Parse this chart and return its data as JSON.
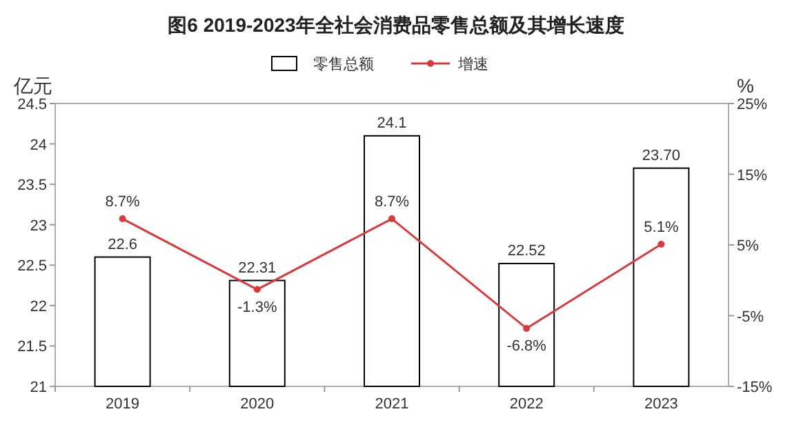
{
  "chart_data": {
    "type": "bar",
    "title": "图6 2019-2023年全社会消费品零售总额及其增长速度",
    "ylabel": "亿元",
    "y2label": "%",
    "categories": [
      "2019",
      "2020",
      "2021",
      "2022",
      "2023"
    ],
    "series": [
      {
        "name": "零售总额",
        "color": "#ffffff",
        "values": [
          22.6,
          22.31,
          24.1,
          22.52,
          23.7
        ],
        "value_labels": [
          "22.6",
          "22.31",
          "24.1",
          "22.52",
          "23.70"
        ]
      },
      {
        "name": "增速",
        "type": "line",
        "axis": "y2",
        "color": "#d8393b",
        "marker": "circle",
        "values": [
          8.7,
          -1.3,
          8.7,
          -6.8,
          5.1
        ],
        "value_labels": [
          "8.7%",
          "-1.3%",
          "8.7%",
          "-6.8%",
          "5.1%"
        ]
      }
    ],
    "ylim": [
      21,
      24.5
    ],
    "yticks": [
      21,
      21.5,
      22,
      22.5,
      23,
      23.5,
      24,
      24.5
    ],
    "y2lim": [
      -15,
      25
    ],
    "y2ticks": [
      {
        "value": -15,
        "label": "-15%"
      },
      {
        "value": -5,
        "label": "-5%"
      },
      {
        "value": 5,
        "label": "5%"
      },
      {
        "value": 15,
        "label": "15%"
      },
      {
        "value": 25,
        "label": "25%"
      }
    ],
    "legend": "top"
  }
}
